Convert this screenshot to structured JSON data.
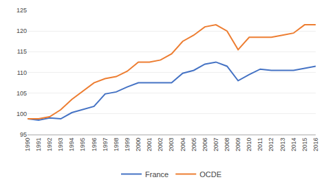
{
  "chart_data": {
    "type": "line",
    "x": [
      1990,
      1991,
      1992,
      1993,
      1994,
      1995,
      1996,
      1997,
      1998,
      1999,
      2000,
      2001,
      2002,
      2003,
      2004,
      2005,
      2006,
      2007,
      2008,
      2009,
      2010,
      2011,
      2012,
      2013,
      2014,
      2015,
      2016
    ],
    "series": [
      {
        "name": "France",
        "color": "#4472C4",
        "values": [
          98.8,
          98.5,
          99.0,
          98.8,
          100.3,
          101.1,
          101.8,
          104.8,
          105.3,
          106.5,
          107.5,
          107.5,
          107.5,
          107.5,
          109.8,
          110.5,
          112.0,
          112.5,
          111.5,
          108.0,
          109.5,
          110.8,
          110.5,
          110.5,
          110.5,
          111.0,
          111.5
        ]
      },
      {
        "name": "OCDE",
        "color": "#ED7D31",
        "values": [
          98.8,
          98.8,
          99.3,
          101.0,
          103.5,
          105.5,
          107.5,
          108.5,
          109.0,
          110.3,
          112.5,
          112.5,
          113.0,
          114.5,
          117.5,
          119.0,
          121.0,
          121.5,
          120.0,
          115.5,
          118.5,
          118.5,
          118.5,
          119.0,
          119.5,
          121.5,
          121.5
        ]
      }
    ],
    "xlim": [
      1990,
      2016
    ],
    "xticks": [
      1990,
      1991,
      1992,
      1993,
      1994,
      1995,
      1996,
      1997,
      1998,
      1999,
      2000,
      2001,
      2002,
      2003,
      2004,
      2005,
      2006,
      2007,
      2008,
      2009,
      2010,
      2011,
      2012,
      2013,
      2014,
      2015,
      2016
    ],
    "ylim": [
      95,
      125
    ],
    "yticks": [
      95,
      100,
      105,
      110,
      115,
      120,
      125
    ],
    "grid": true,
    "legend": "bottom"
  }
}
